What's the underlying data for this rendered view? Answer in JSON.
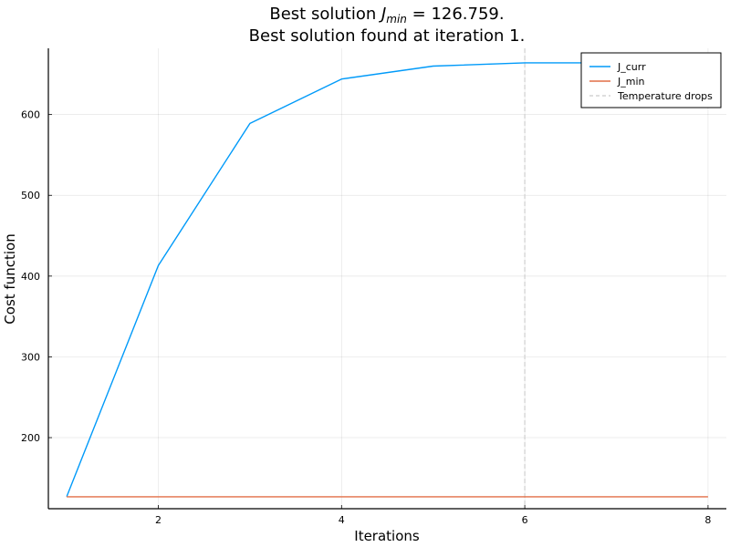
{
  "chart_data": {
    "type": "line",
    "title_prefix": "Best solution ",
    "title_math_base": "J",
    "title_math_sub": "min",
    "title_suffix": " = 126.759.",
    "subtitle": "Best solution found at iteration 1.",
    "xlabel": "Iterations",
    "ylabel": "Cost function",
    "xlim": [
      0.8,
      8.2
    ],
    "ylim": [
      112,
      682
    ],
    "xticks": [
      2,
      4,
      6,
      8
    ],
    "yticks": [
      200,
      300,
      400,
      500,
      600
    ],
    "grid": true,
    "legend_position": "top-right",
    "series": [
      {
        "name": "J_curr",
        "color": "#009af9",
        "dash": "solid",
        "x": [
          1,
          2,
          3,
          4,
          5,
          6,
          7
        ],
        "y": [
          127,
          413,
          589,
          644,
          660,
          664,
          664
        ]
      },
      {
        "name": "J_min",
        "color": "#e26f46",
        "dash": "solid",
        "x": [
          1,
          8
        ],
        "y": [
          126.759,
          126.759
        ]
      }
    ],
    "vlines": [
      {
        "name": "Temperature drops",
        "color": "#d3d3d3",
        "dash": "dashed",
        "x": 6
      }
    ]
  }
}
